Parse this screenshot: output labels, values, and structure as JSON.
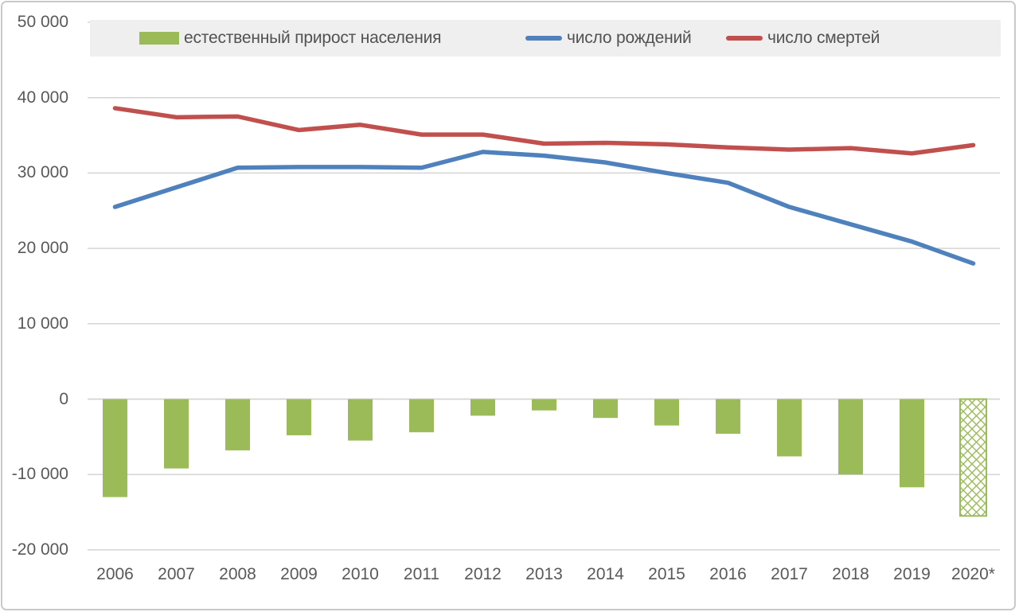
{
  "chart_data": {
    "type": "combo-bar-line",
    "title": "",
    "categories": [
      "2006",
      "2007",
      "2008",
      "2009",
      "2010",
      "2011",
      "2012",
      "2013",
      "2014",
      "2015",
      "2016",
      "2017",
      "2018",
      "2019",
      "2020*"
    ],
    "series": [
      {
        "name": "естественный прирост населения",
        "type": "bar",
        "color": "#9bbb59",
        "last_bar_hatched": true,
        "values": [
          -13000,
          -9200,
          -6800,
          -4800,
          -5500,
          -4400,
          -2200,
          -1500,
          -2500,
          -3500,
          -4600,
          -7600,
          -10000,
          -11700,
          -15500
        ]
      },
      {
        "name": "число рождений",
        "type": "line",
        "color": "#4f81bd",
        "values": [
          25500,
          28100,
          30700,
          30800,
          30800,
          30700,
          32800,
          32300,
          31400,
          30000,
          28700,
          25500,
          23200,
          20900,
          18000
        ]
      },
      {
        "name": "число смертей",
        "type": "line",
        "color": "#c0504d",
        "values": [
          38600,
          37400,
          37500,
          35700,
          36400,
          35100,
          35100,
          33900,
          34000,
          33800,
          33400,
          33100,
          33300,
          32600,
          33700
        ]
      }
    ],
    "ylim": [
      -20000,
      50000
    ],
    "ytick_values": [
      50000,
      40000,
      30000,
      20000,
      10000,
      0,
      -10000,
      -20000
    ],
    "ytick_labels": [
      "50 000",
      "40 000",
      "30 000",
      "20 000",
      "10 000",
      "0",
      "-10 000",
      "-20 000"
    ],
    "xlabel": "",
    "ylabel": "",
    "grid": true,
    "legend_position": "top"
  },
  "colors": {
    "bar_green": "#9bbb59",
    "line_blue": "#4f81bd",
    "line_red": "#c0504d",
    "gridline": "#d4d4d4",
    "axis_text": "#595959",
    "legend_background": "#efefef",
    "legend_text": "#525252",
    "frame_border": "#c9c9c9",
    "background": "#ffffff"
  }
}
